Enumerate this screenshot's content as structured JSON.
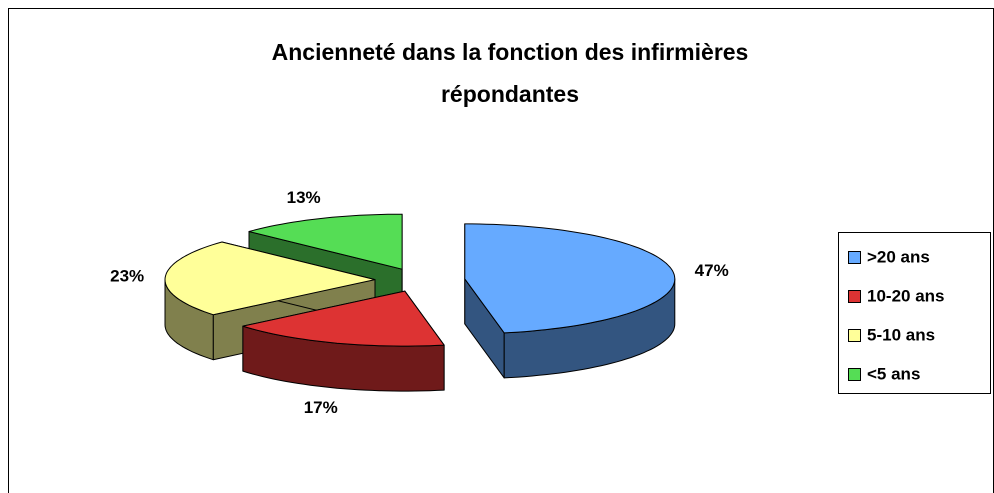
{
  "chart_data": {
    "type": "pie3d",
    "title": [
      "Ancienneté dans la fonction des infirmières",
      "répondantes"
    ],
    "categories": [
      ">20 ans",
      "10-20 ans",
      "5-10 ans",
      "<5 ans"
    ],
    "values": [
      47,
      17,
      23,
      13
    ],
    "value_labels": [
      "47%",
      "17%",
      "23%",
      "13%"
    ],
    "colors": [
      "#66aaff",
      "#dd3333",
      "#ffff99",
      "#55dd55"
    ],
    "legend": "right"
  }
}
